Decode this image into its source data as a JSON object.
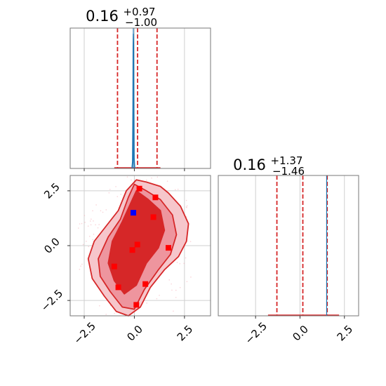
{
  "chart_data": [
    {
      "type": "histogram",
      "panel": "marginal-x",
      "title": {
        "value": "0.16",
        "upper": "+0.97",
        "lower": "−1.00"
      },
      "xlim": [
        -3.2,
        3.8
      ],
      "grid": true,
      "quantile_lines": [
        -0.84,
        0.16,
        1.13
      ],
      "quantile_color": "#d62728",
      "truth_line": -0.05,
      "truth_color": "#1f77b4",
      "histogram_curve": {
        "x": [
          -0.12,
          -0.09,
          -0.07,
          -0.06,
          -0.05,
          -0.04,
          -0.03,
          -0.01,
          0.02
        ],
        "density": [
          0.0,
          0.05,
          0.45,
          0.9,
          1.0,
          0.92,
          0.5,
          0.08,
          0.0
        ]
      },
      "baseline_band": [
        -1.0,
        1.3
      ]
    },
    {
      "type": "contour",
      "panel": "joint",
      "xlim": [
        -3.2,
        3.8
      ],
      "ylim": [
        -3.2,
        3.2
      ],
      "grid": true,
      "xticks": [
        "−2.5",
        "0.0",
        "2.5"
      ],
      "yticks": [
        "−2.5",
        "0.0",
        "2.5"
      ],
      "fill_colors": [
        "#f6c6cb",
        "#ee959e",
        "#d62728"
      ],
      "line_color": "#d62728",
      "contour_levels": [
        {
          "name": "outer",
          "x": [
            0.1,
            0.6,
            1.3,
            1.7,
            2.3,
            2.7,
            2.6,
            2.2,
            1.5,
            0.8,
            0.3,
            -0.3,
            -0.9,
            -1.5,
            -2.1,
            -2.3,
            -2.0,
            -1.4,
            -0.8,
            -0.4,
            0.1
          ],
          "y": [
            3.0,
            2.9,
            2.7,
            2.4,
            1.8,
            1.0,
            0.2,
            -0.5,
            -1.1,
            -1.9,
            -2.8,
            -3.2,
            -3.0,
            -2.3,
            -1.5,
            -0.6,
            0.2,
            0.9,
            1.6,
            2.5,
            3.0
          ]
        },
        {
          "name": "middle",
          "x": [
            0.0,
            0.6,
            1.3,
            1.9,
            2.1,
            1.8,
            1.2,
            0.5,
            0.0,
            -0.6,
            -1.2,
            -1.7,
            -1.8,
            -1.3,
            -0.7,
            -0.3,
            0.0
          ],
          "y": [
            2.8,
            2.5,
            2.1,
            1.4,
            0.5,
            -0.4,
            -1.1,
            -2.0,
            -2.9,
            -2.8,
            -2.1,
            -1.4,
            -0.6,
            0.4,
            1.2,
            2.2,
            2.8
          ]
        },
        {
          "name": "inner",
          "x": [
            0.1,
            0.7,
            1.3,
            1.5,
            1.2,
            0.6,
            0.1,
            -0.5,
            -1.0,
            -1.3,
            -1.1,
            -0.6,
            -0.2,
            0.1
          ],
          "y": [
            2.5,
            2.1,
            1.6,
            0.7,
            -0.1,
            -0.8,
            -1.8,
            -2.2,
            -1.6,
            -0.8,
            0.2,
            1.1,
            1.9,
            2.5
          ]
        }
      ],
      "samples_red": [
        {
          "x": 0.25,
          "y": 2.6
        },
        {
          "x": 1.05,
          "y": 2.2
        },
        {
          "x": 0.95,
          "y": 1.3
        },
        {
          "x": 0.15,
          "y": 0.05
        },
        {
          "x": -0.1,
          "y": -0.2
        },
        {
          "x": 1.7,
          "y": -0.1
        },
        {
          "x": -1.0,
          "y": -0.95
        },
        {
          "x": 0.55,
          "y": -1.75
        },
        {
          "x": -0.8,
          "y": -1.9
        },
        {
          "x": 0.1,
          "y": -2.7
        }
      ],
      "sample_truth": {
        "x": -0.05,
        "y": 1.5
      }
    },
    {
      "type": "histogram",
      "panel": "marginal-y",
      "title": {
        "value": "0.16",
        "upper": "+1.37",
        "lower": "−1.46"
      },
      "xlim": [
        -4.6,
        3.3
      ],
      "grid": true,
      "xticks": [
        "−2.5",
        "0.0",
        "2.5"
      ],
      "quantile_lines": [
        -1.3,
        0.16,
        1.53
      ],
      "quantile_color": "#d62728",
      "truth_line": 1.5,
      "truth_color": "#1f77b4",
      "baseline_band": [
        -1.8,
        2.2
      ]
    }
  ]
}
